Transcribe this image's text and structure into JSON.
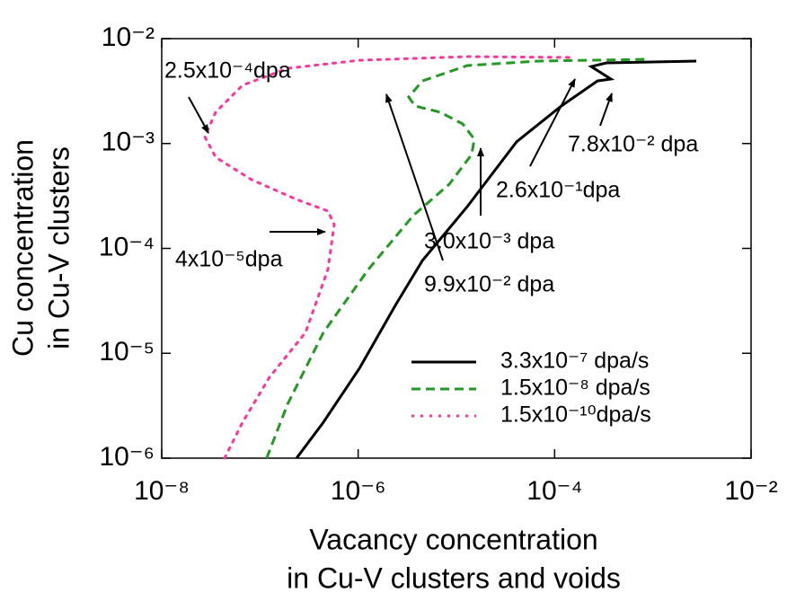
{
  "chart_data": {
    "type": "line",
    "xlabel": [
      "Vacancy concentration",
      "in Cu-V clusters and voids"
    ],
    "ylabel": [
      "Cu concentration",
      "in Cu-V clusters"
    ],
    "xscale": "log",
    "yscale": "log",
    "xlim": [
      1e-08,
      0.01
    ],
    "ylim": [
      1e-06,
      0.01
    ],
    "xticks": [
      {
        "value": 1e-08,
        "label": "10⁻⁸"
      },
      {
        "value": 1e-06,
        "label": "10⁻⁶"
      },
      {
        "value": 0.0001,
        "label": "10⁻⁴"
      },
      {
        "value": 0.01,
        "label": "10⁻²"
      }
    ],
    "yticks": [
      {
        "value": 1e-06,
        "label": "10⁻⁶"
      },
      {
        "value": 1e-05,
        "label": "10⁻⁵"
      },
      {
        "value": 0.0001,
        "label": "10⁻⁴"
      },
      {
        "value": 0.001,
        "label": "10⁻³"
      },
      {
        "value": 0.01,
        "label": "10⁻²"
      }
    ],
    "legend": "lower right",
    "series": [
      {
        "name": "3.3x10⁻⁷ dpa/s",
        "color": "#000000",
        "dash": "solid",
        "x": [
          2.36e-07,
          4.43e-07,
          1.03e-06,
          2.39e-06,
          4.51e-06,
          1.29e-05,
          4.1e-05,
          0.000117,
          0.000273,
          0.000374,
          0.000236,
          0.000337,
          0.00277
        ],
        "values": [
          1e-06,
          2.2e-06,
          7.19e-06,
          2.86e-05,
          7.66e-05,
          0.00025,
          0.00104,
          0.00228,
          0.00395,
          0.00412,
          0.00542,
          0.00587,
          0.00611
        ]
      },
      {
        "name": "1.5x10⁻⁸ dpa/s",
        "color": "#229922",
        "dash": "dashed",
        "x": [
          1.17e-07,
          1.91e-07,
          4.43e-07,
          1.27e-06,
          3.64e-06,
          8.45e-06,
          1.43e-05,
          1.52e-05,
          1.16e-05,
          6.84e-06,
          3.8e-06,
          3.27e-06,
          4.5e-06,
          1.29e-05,
          6.95e-05,
          0.000869
        ],
        "values": [
          1e-06,
          3.27e-06,
          1.58e-05,
          6.3e-05,
          0.000206,
          0.000409,
          0.000785,
          0.0011,
          0.00154,
          0.00199,
          0.00228,
          0.00277,
          0.00395,
          0.00553,
          0.00611,
          0.00635
        ]
      },
      {
        "name": "1.5x10⁻¹⁰dpa/s",
        "color": "#ff3399",
        "dash": "dotted",
        "x": [
          4.37e-08,
          6.65e-08,
          1.25e-07,
          2.91e-07,
          4.92e-07,
          5.7e-07,
          4.92e-07,
          2.36e-07,
          8.22e-08,
          3.54e-08,
          2.75e-08,
          3.54e-08,
          6.65e-08,
          1.91e-07,
          1.03e-06,
          1.29e-05,
          0.000161
        ],
        "values": [
          1e-06,
          2.2e-06,
          5.9e-06,
          1.58e-05,
          6.3e-05,
          0.000169,
          0.000227,
          0.000293,
          0.000452,
          0.00074,
          0.00116,
          0.00199,
          0.00359,
          0.00521,
          0.00622,
          0.00674,
          0.00661
        ]
      }
    ],
    "annotations": [
      {
        "text": "2.5x10⁻⁴dpa",
        "color": "#ff0000"
      },
      {
        "text": "4x10⁻⁵dpa",
        "color": "#ff0000"
      },
      {
        "text": "7.8x10⁻² dpa",
        "color": "#000000"
      },
      {
        "text": "2.6x10⁻¹dpa",
        "color": "#000000"
      },
      {
        "text": "3.0x10⁻³ dpa",
        "color": "#229922"
      },
      {
        "text": "9.9x10⁻² dpa",
        "color": "#229922"
      }
    ]
  }
}
